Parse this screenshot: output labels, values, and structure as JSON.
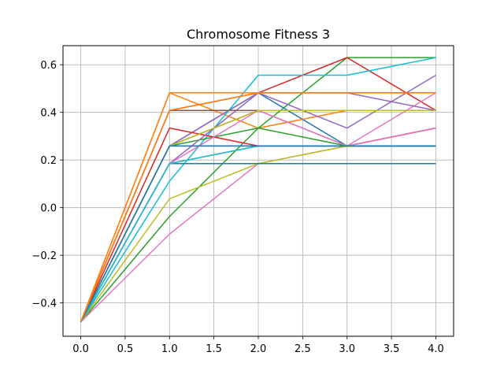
{
  "chart_data": {
    "type": "line",
    "title": "Chromosome Fitness 3",
    "xlabel": "",
    "ylabel": "",
    "x": [
      0,
      1,
      2,
      3,
      4
    ],
    "xlim": [
      -0.2,
      4.2
    ],
    "ylim": [
      -0.54,
      0.68
    ],
    "xticks": [
      0.0,
      0.5,
      1.0,
      1.5,
      2.0,
      2.5,
      3.0,
      3.5,
      4.0
    ],
    "xtick_labels": [
      "0.0",
      "0.5",
      "1.0",
      "1.5",
      "2.0",
      "2.5",
      "3.0",
      "3.5",
      "4.0"
    ],
    "yticks": [
      -0.4,
      -0.2,
      0.0,
      0.2,
      0.4,
      0.6
    ],
    "ytick_labels": [
      "−0.4",
      "−0.2",
      "0.0",
      "0.2",
      "0.4",
      "0.6"
    ],
    "grid": true,
    "legend": "none",
    "series": [
      {
        "color": "#1f77b4",
        "values": [
          -0.48,
          0.259,
          0.482,
          0.259,
          0.259
        ]
      },
      {
        "color": "#ff7f0e",
        "values": [
          -0.48,
          0.482,
          0.334,
          0.408,
          0.408
        ]
      },
      {
        "color": "#2ca02c",
        "values": [
          -0.48,
          -0.037,
          0.334,
          0.63,
          0.63
        ]
      },
      {
        "color": "#d62728",
        "values": [
          -0.48,
          0.408,
          0.482,
          0.63,
          0.408
        ]
      },
      {
        "color": "#9467bd",
        "values": [
          -0.48,
          0.259,
          0.482,
          0.334,
          0.556
        ]
      },
      {
        "color": "#8c564b",
        "values": [
          -0.48,
          0.259,
          0.408,
          0.259,
          0.334
        ]
      },
      {
        "color": "#e377c2",
        "values": [
          -0.48,
          -0.111,
          0.185,
          0.259,
          0.482
        ]
      },
      {
        "color": "#7f7f7f",
        "values": [
          -0.48,
          0.259,
          0.259,
          0.259,
          0.259
        ]
      },
      {
        "color": "#bcbd22",
        "values": [
          -0.48,
          0.037,
          0.185,
          0.259,
          0.259
        ]
      },
      {
        "color": "#17becf",
        "values": [
          -0.48,
          0.111,
          0.556,
          0.556,
          0.63
        ]
      },
      {
        "color": "#1f77b4",
        "values": [
          -0.48,
          0.185,
          0.185,
          0.185,
          0.185
        ]
      },
      {
        "color": "#ff7f0e",
        "values": [
          -0.48,
          0.482,
          0.482,
          0.482,
          0.482
        ]
      },
      {
        "color": "#2ca02c",
        "values": [
          -0.48,
          0.259,
          0.334,
          0.259,
          0.259
        ]
      },
      {
        "color": "#d62728",
        "values": [
          -0.48,
          0.334,
          0.259,
          0.259,
          0.334
        ]
      },
      {
        "color": "#9467bd",
        "values": [
          -0.48,
          0.185,
          0.482,
          0.482,
          0.408
        ]
      },
      {
        "color": "#8c564b",
        "values": [
          -0.48,
          0.408,
          0.408,
          0.408,
          0.408
        ]
      },
      {
        "color": "#e377c2",
        "values": [
          -0.48,
          0.185,
          0.408,
          0.259,
          0.334
        ]
      },
      {
        "color": "#7f7f7f",
        "values": [
          -0.48,
          0.185,
          0.259,
          0.259,
          0.259
        ]
      },
      {
        "color": "#bcbd22",
        "values": [
          -0.48,
          0.259,
          0.408,
          0.408,
          0.408
        ]
      },
      {
        "color": "#17becf",
        "values": [
          -0.48,
          0.185,
          0.259,
          0.259,
          0.259
        ]
      },
      {
        "color": "#1f77b4",
        "values": [
          -0.48,
          0.259,
          0.259,
          0.259,
          0.259
        ]
      },
      {
        "color": "#ff7f0e",
        "values": [
          -0.48,
          0.408,
          0.482,
          0.482,
          0.482
        ]
      }
    ]
  }
}
